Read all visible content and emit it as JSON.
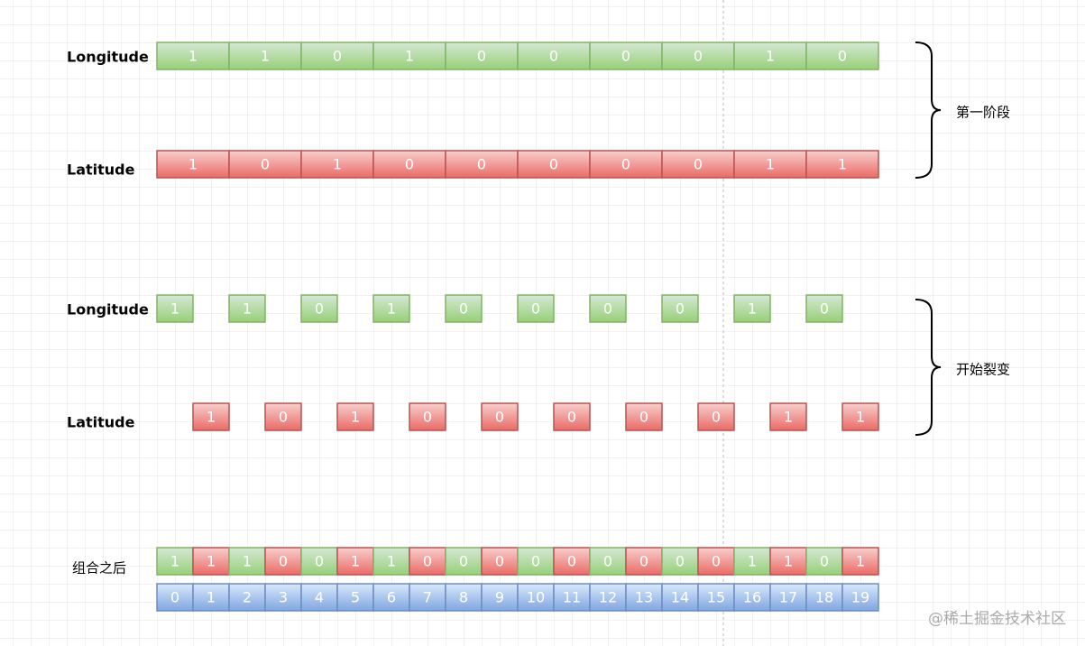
{
  "stage1": {
    "label": "第一阶段",
    "longitude": {
      "label": "Longitude",
      "bits": [
        1,
        1,
        0,
        1,
        0,
        0,
        0,
        0,
        1,
        0
      ]
    },
    "latitude": {
      "label": "Latitude",
      "bits": [
        1,
        0,
        1,
        0,
        0,
        0,
        0,
        0,
        1,
        1
      ]
    }
  },
  "stage2": {
    "label": "开始裂变",
    "longitude": {
      "label": "Longitude",
      "bits": [
        1,
        1,
        0,
        1,
        0,
        0,
        0,
        0,
        1,
        0
      ]
    },
    "latitude": {
      "label": "Latitude",
      "bits": [
        1,
        0,
        1,
        0,
        0,
        0,
        0,
        0,
        1,
        1
      ]
    }
  },
  "combined": {
    "label": "组合之后",
    "bits": [
      1,
      1,
      1,
      0,
      0,
      1,
      1,
      0,
      0,
      0,
      0,
      0,
      0,
      0,
      0,
      0,
      1,
      1,
      0,
      1
    ],
    "indices": [
      0,
      1,
      2,
      3,
      4,
      5,
      6,
      7,
      8,
      9,
      10,
      11,
      12,
      13,
      14,
      15,
      16,
      17,
      18,
      19
    ]
  },
  "watermark": "@稀土掘金技术社区"
}
